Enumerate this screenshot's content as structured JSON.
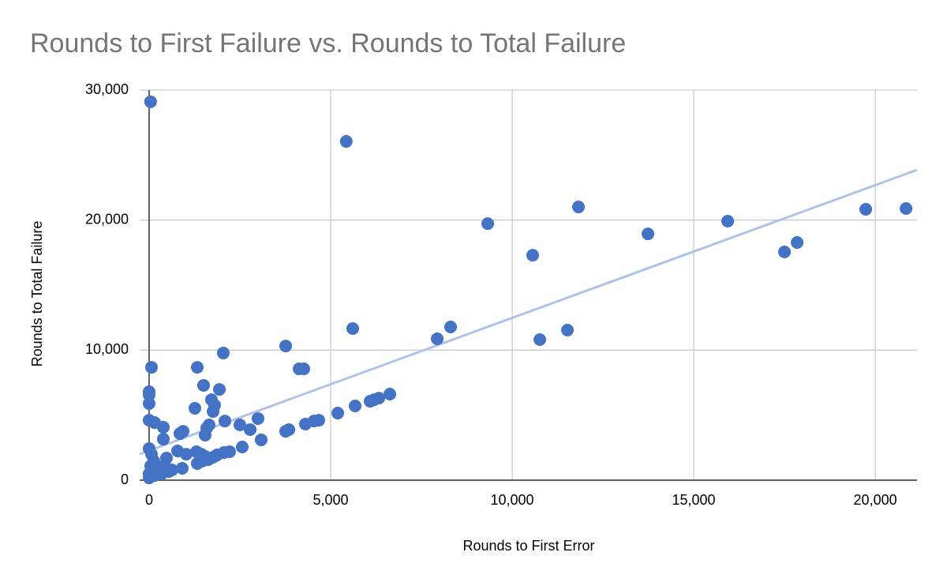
{
  "chart_data": {
    "type": "scatter",
    "title": "Rounds to First Failure vs. Rounds to Total Failure",
    "x_label": "Rounds to First Error",
    "y_label": "Rounds to Total Failure",
    "color": "#4472c4",
    "x": [
      40,
      5430,
      9326,
      11826,
      10565,
      13739,
      15935,
      17500,
      17848,
      19739,
      20848,
      5609,
      8304,
      7935,
      10761,
      11522,
      3761,
      4130,
      4261,
      2043,
      1326,
      65,
      1500,
      1935,
      0,
      0,
      0,
      1717,
      1804,
      1261,
      1761,
      2087,
      0,
      152,
      391,
      1652,
      1587,
      1543,
      2500,
      2783,
      2999,
      3087,
      935,
      848,
      391,
      3761,
      3848,
      4304,
      4543,
      4674,
      5196,
      5674,
      6087,
      6196,
      6326,
      6630,
      2565,
      1304,
      1022,
      783,
      1435,
      1543,
      1870,
      2065,
      2217,
      1326,
      1457,
      1630,
      1761,
      913,
      630,
      457,
      478,
      0,
      65,
      130,
      217,
      304,
      0,
      152,
      348,
      543,
      43,
      0
    ],
    "values": [
      29100,
      26050,
      19730,
      21010,
      17300,
      18940,
      19920,
      17550,
      18280,
      20830,
      20890,
      11660,
      11780,
      10870,
      10810,
      11540,
      10320,
      8560,
      8560,
      9780,
      8680,
      8680,
      7290,
      6980,
      6800,
      6560,
      5890,
      6190,
      5770,
      5530,
      5280,
      4550,
      4610,
      4430,
      4070,
      4250,
      4010,
      3460,
      4250,
      3890,
      4740,
      3100,
      3760,
      3580,
      3160,
      3760,
      3890,
      4310,
      4550,
      4610,
      5160,
      5710,
      6070,
      6190,
      6310,
      6620,
      2550,
      2190,
      2000,
      2250,
      2000,
      1820,
      1940,
      2130,
      2190,
      1280,
      1460,
      1580,
      1760,
      910,
      790,
      970,
      1700,
      2430,
      2000,
      1460,
      1090,
      730,
      490,
      360,
      490,
      670,
      1090,
      180
    ],
    "trendline": {
      "color": "#aec3e6",
      "x": [
        -260,
        21150
      ],
      "y": [
        2005,
        23860
      ]
    },
    "xlim": [
      -260,
      21150
    ],
    "ylim": [
      0,
      30000
    ],
    "xticks": [
      0,
      {
        "value": 5000,
        "label": "5,000"
      },
      {
        "value": 10000,
        "label": "10,000"
      },
      {
        "value": 15000,
        "label": "15,000"
      },
      {
        "value": 20000,
        "label": "20,000"
      }
    ],
    "yticks": [
      0,
      {
        "value": 10000,
        "label": "10,000"
      },
      {
        "value": 20000,
        "label": "20,000"
      },
      {
        "value": 30000,
        "label": "30,000"
      }
    ],
    "grid": true
  }
}
